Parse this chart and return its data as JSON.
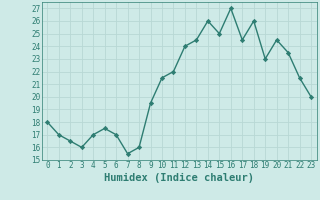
{
  "xlabel": "Humidex (Indice chaleur)",
  "x": [
    0,
    1,
    2,
    3,
    4,
    5,
    6,
    7,
    8,
    9,
    10,
    11,
    12,
    13,
    14,
    15,
    16,
    17,
    18,
    19,
    20,
    21,
    22,
    23
  ],
  "y": [
    18,
    17,
    16.5,
    16,
    17,
    17.5,
    17,
    15.5,
    16,
    19.5,
    21.5,
    22,
    24,
    24.5,
    26,
    25,
    27,
    24.5,
    26,
    23,
    24.5,
    23.5,
    21.5,
    20
  ],
  "line_color": "#2e7d72",
  "marker": "D",
  "marker_size": 2.2,
  "bg_color": "#ceeae7",
  "grid_color": "#b8d8d5",
  "ylim": [
    15,
    27.5
  ],
  "yticks": [
    15,
    16,
    17,
    18,
    19,
    20,
    21,
    22,
    23,
    24,
    25,
    26,
    27
  ],
  "xticks": [
    0,
    1,
    2,
    3,
    4,
    5,
    6,
    7,
    8,
    9,
    10,
    11,
    12,
    13,
    14,
    15,
    16,
    17,
    18,
    19,
    20,
    21,
    22,
    23
  ],
  "tick_fontsize": 5.5,
  "xlabel_fontsize": 7.5,
  "line_width": 1.0
}
